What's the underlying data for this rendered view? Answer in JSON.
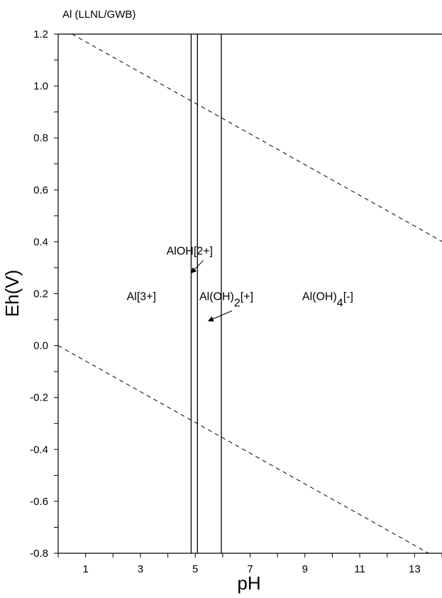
{
  "chart_data": {
    "type": "line",
    "title": "Al (LLNL/GWB)",
    "xlabel": "pH",
    "ylabel": "Eh(V)",
    "xlim": [
      0,
      14
    ],
    "ylim": [
      -0.8,
      1.2
    ],
    "xticks": [
      1,
      3,
      5,
      7,
      9,
      11,
      13
    ],
    "yticks": [
      -0.8,
      -0.6,
      -0.4,
      -0.2,
      0.0,
      0.2,
      0.4,
      0.6,
      0.8,
      1.0,
      1.2
    ],
    "ytick_labels": [
      "-0.8",
      "-0.6",
      "-0.4",
      "-0.2",
      "0.0",
      "0.2",
      "0.4",
      "0.6",
      "0.8",
      "1.0",
      "1.2"
    ],
    "grid": false,
    "series": [
      {
        "style": "dashed",
        "x": [
          0,
          14
        ],
        "y": [
          1.23,
          0.4012
        ]
      },
      {
        "style": "dashed",
        "x": [
          0,
          14
        ],
        "y": [
          0.0,
          -0.8288
        ]
      },
      {
        "style": "solid",
        "x": [
          4.85,
          4.85
        ],
        "y": [
          -0.8,
          1.2
        ]
      },
      {
        "style": "solid",
        "x": [
          5.08,
          5.08
        ],
        "y": [
          -0.8,
          1.2
        ]
      },
      {
        "style": "solid",
        "x": [
          5.95,
          5.95
        ],
        "y": [
          -0.8,
          1.2
        ]
      }
    ],
    "annotations": [
      {
        "text": "Al[3+]",
        "x": 2.5,
        "y": 0.175
      },
      {
        "text": "AlOH[2+]",
        "x": 3.95,
        "y": 0.35,
        "arrow_to": [
          4.85,
          0.28
        ]
      },
      {
        "text": "Al(OH)",
        "sub": "2",
        "suffix": "[+]",
        "x": 5.15,
        "y": 0.175,
        "arrow_to": [
          5.48,
          0.095
        ]
      },
      {
        "text": "Al(OH)",
        "sub": "4",
        "suffix": "[-]",
        "x": 8.9,
        "y": 0.175
      }
    ]
  }
}
